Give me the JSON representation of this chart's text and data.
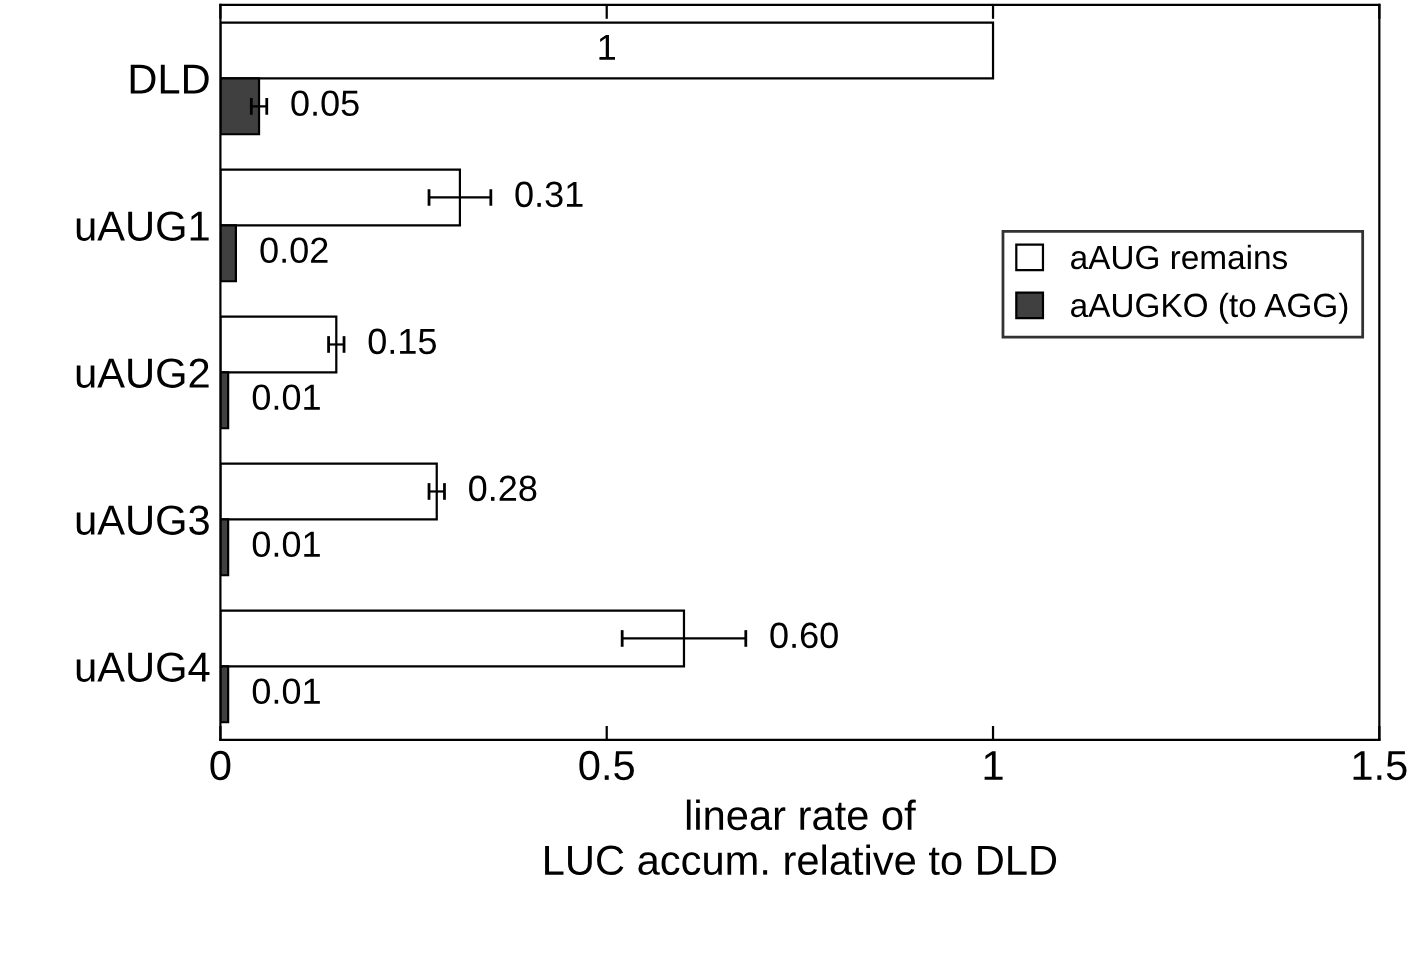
{
  "chart_data": {
    "type": "bar",
    "orientation": "horizontal",
    "categories": [
      "DLD",
      "uAUG1",
      "uAUG2",
      "uAUG3",
      "uAUG4"
    ],
    "xlabel": "linear rate of\nLUC accum. relative to DLD",
    "xlim": [
      0,
      1.5
    ],
    "xticks": [
      0,
      0.5,
      1,
      1.5
    ],
    "legend": "right",
    "grid": false,
    "series": [
      {
        "name": "aAUG remains",
        "color": "#ffffff",
        "values": [
          1,
          0.31,
          0.15,
          0.28,
          0.6
        ],
        "errors": [
          null,
          0.04,
          0.01,
          0.01,
          0.08
        ],
        "value_labels": [
          "1",
          "0.31",
          "0.15",
          "0.28",
          "0.60"
        ]
      },
      {
        "name": "aAUGKO (to AGG)",
        "color": "#404040",
        "values": [
          0.05,
          0.02,
          0.01,
          0.01,
          0.01
        ],
        "errors": [
          0.01,
          null,
          null,
          null,
          null
        ],
        "value_labels": [
          "0.05",
          "0.02",
          "0.01",
          "0.01",
          "0.01"
        ]
      }
    ]
  }
}
